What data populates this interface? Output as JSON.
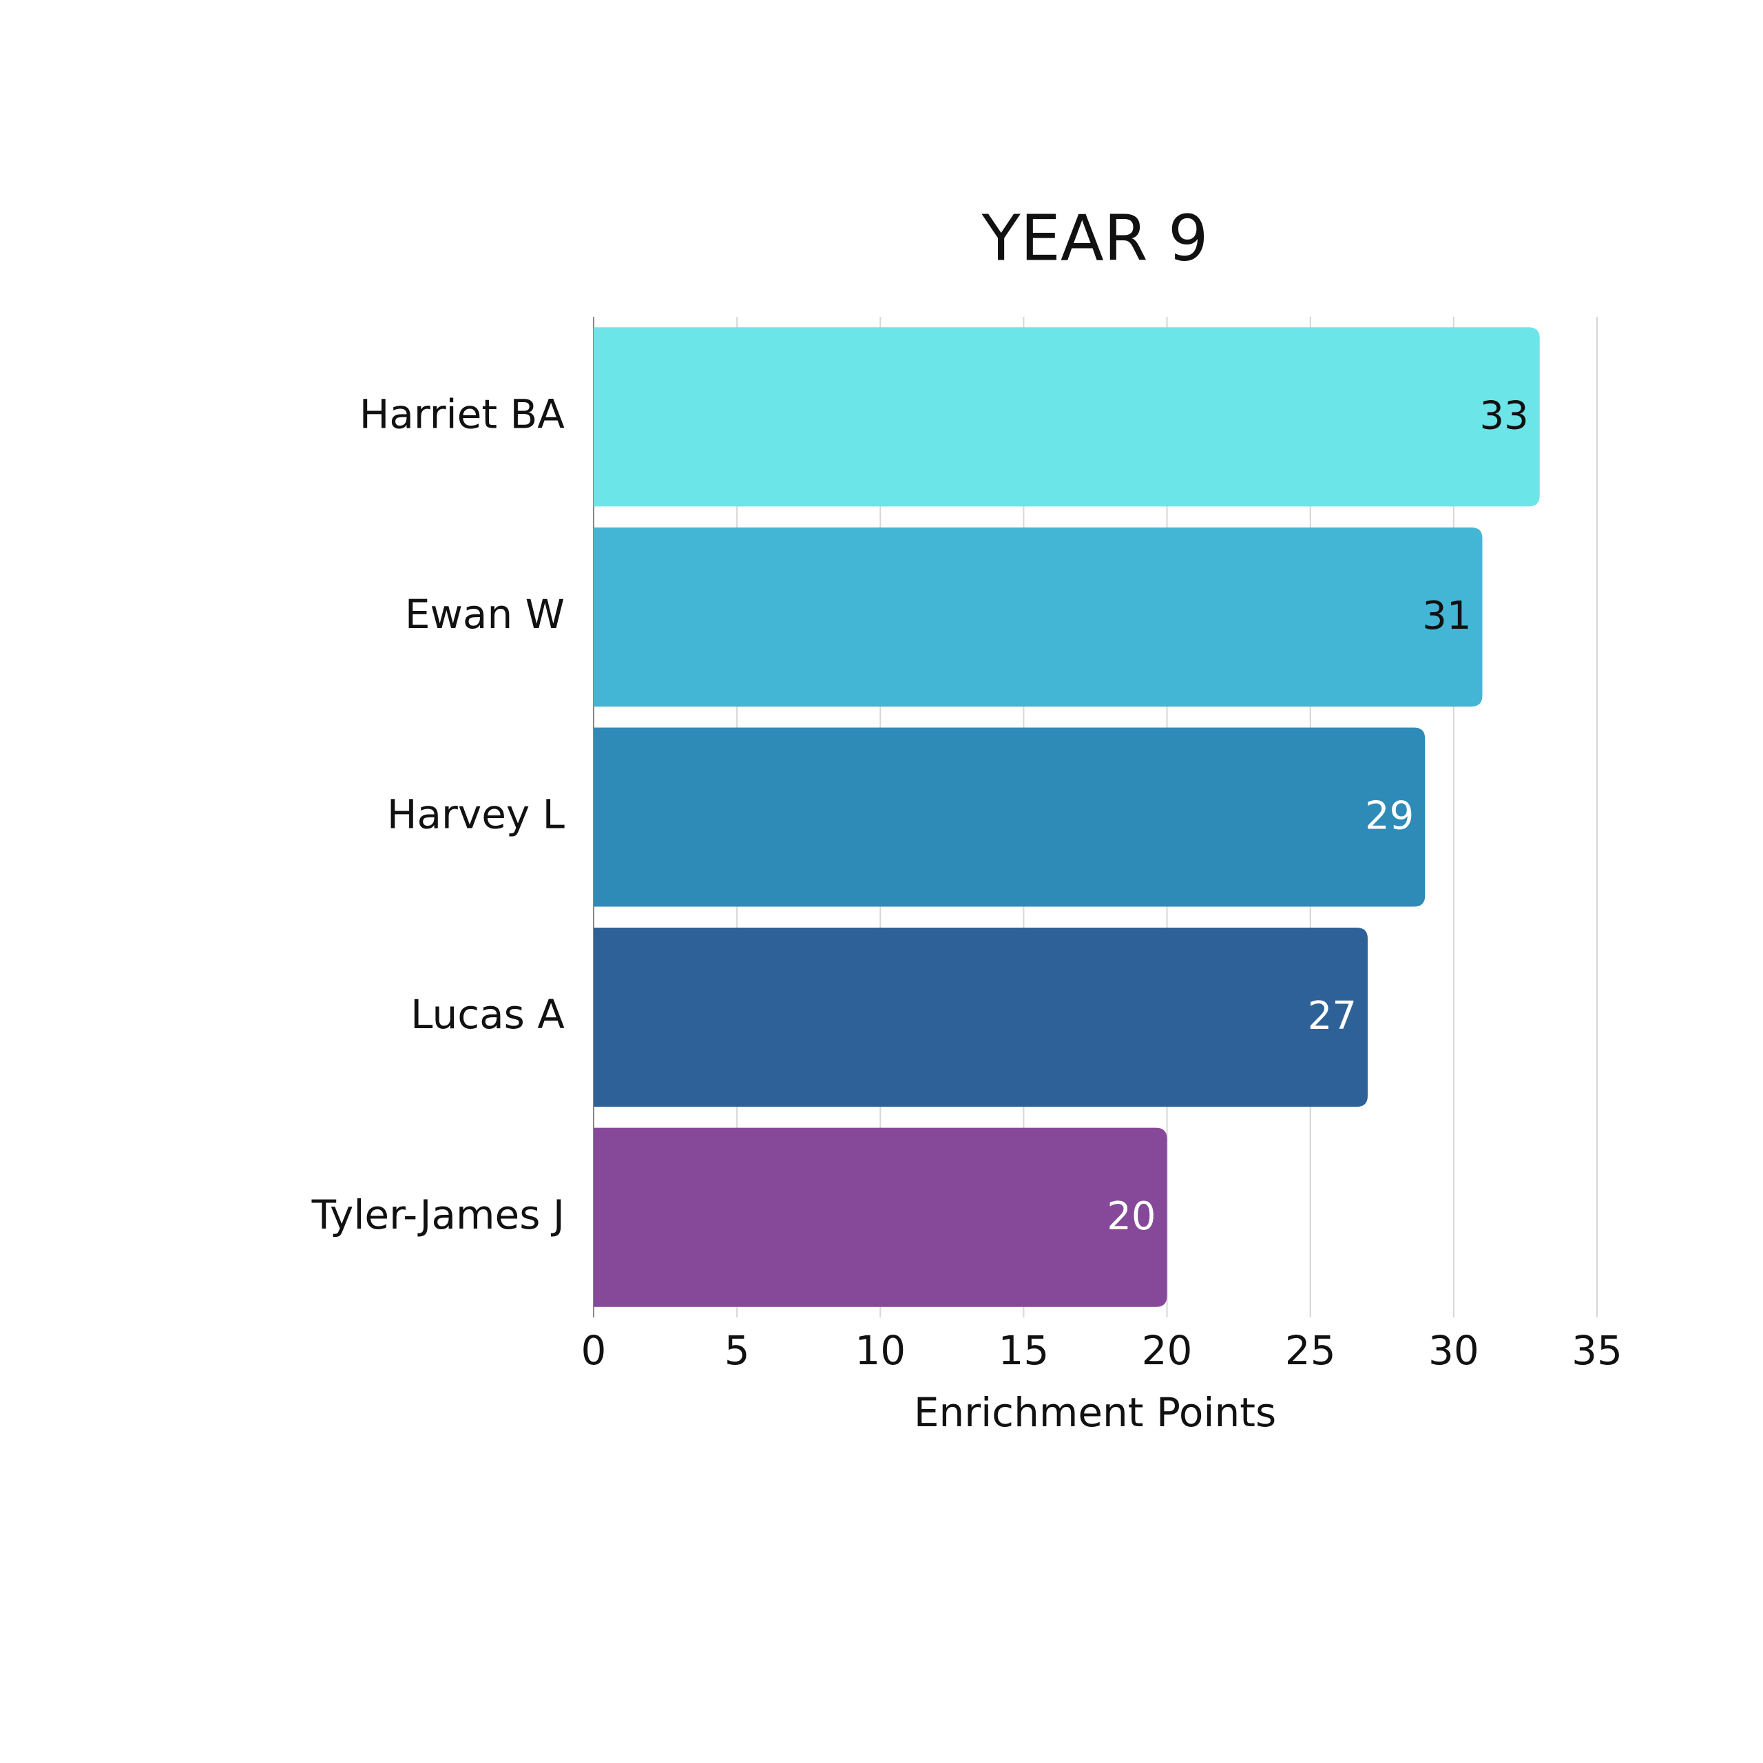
{
  "chart_data": {
    "type": "bar",
    "orientation": "horizontal",
    "title": "YEAR 9",
    "x_label": "Enrichment Points",
    "categories": [
      "Harriet BA",
      "Ewan W",
      "Harvey L",
      "Lucas A",
      "Tyler-James J"
    ],
    "values": [
      33,
      31,
      29,
      27,
      20
    ],
    "colors": [
      "#6be5e8",
      "#43b6d5",
      "#2e8bb8",
      "#2e6198",
      "#864899"
    ],
    "xlim": [
      0,
      35
    ],
    "xticks": [
      0,
      5,
      10,
      15,
      20,
      25,
      30,
      35
    ],
    "grid": true
  }
}
